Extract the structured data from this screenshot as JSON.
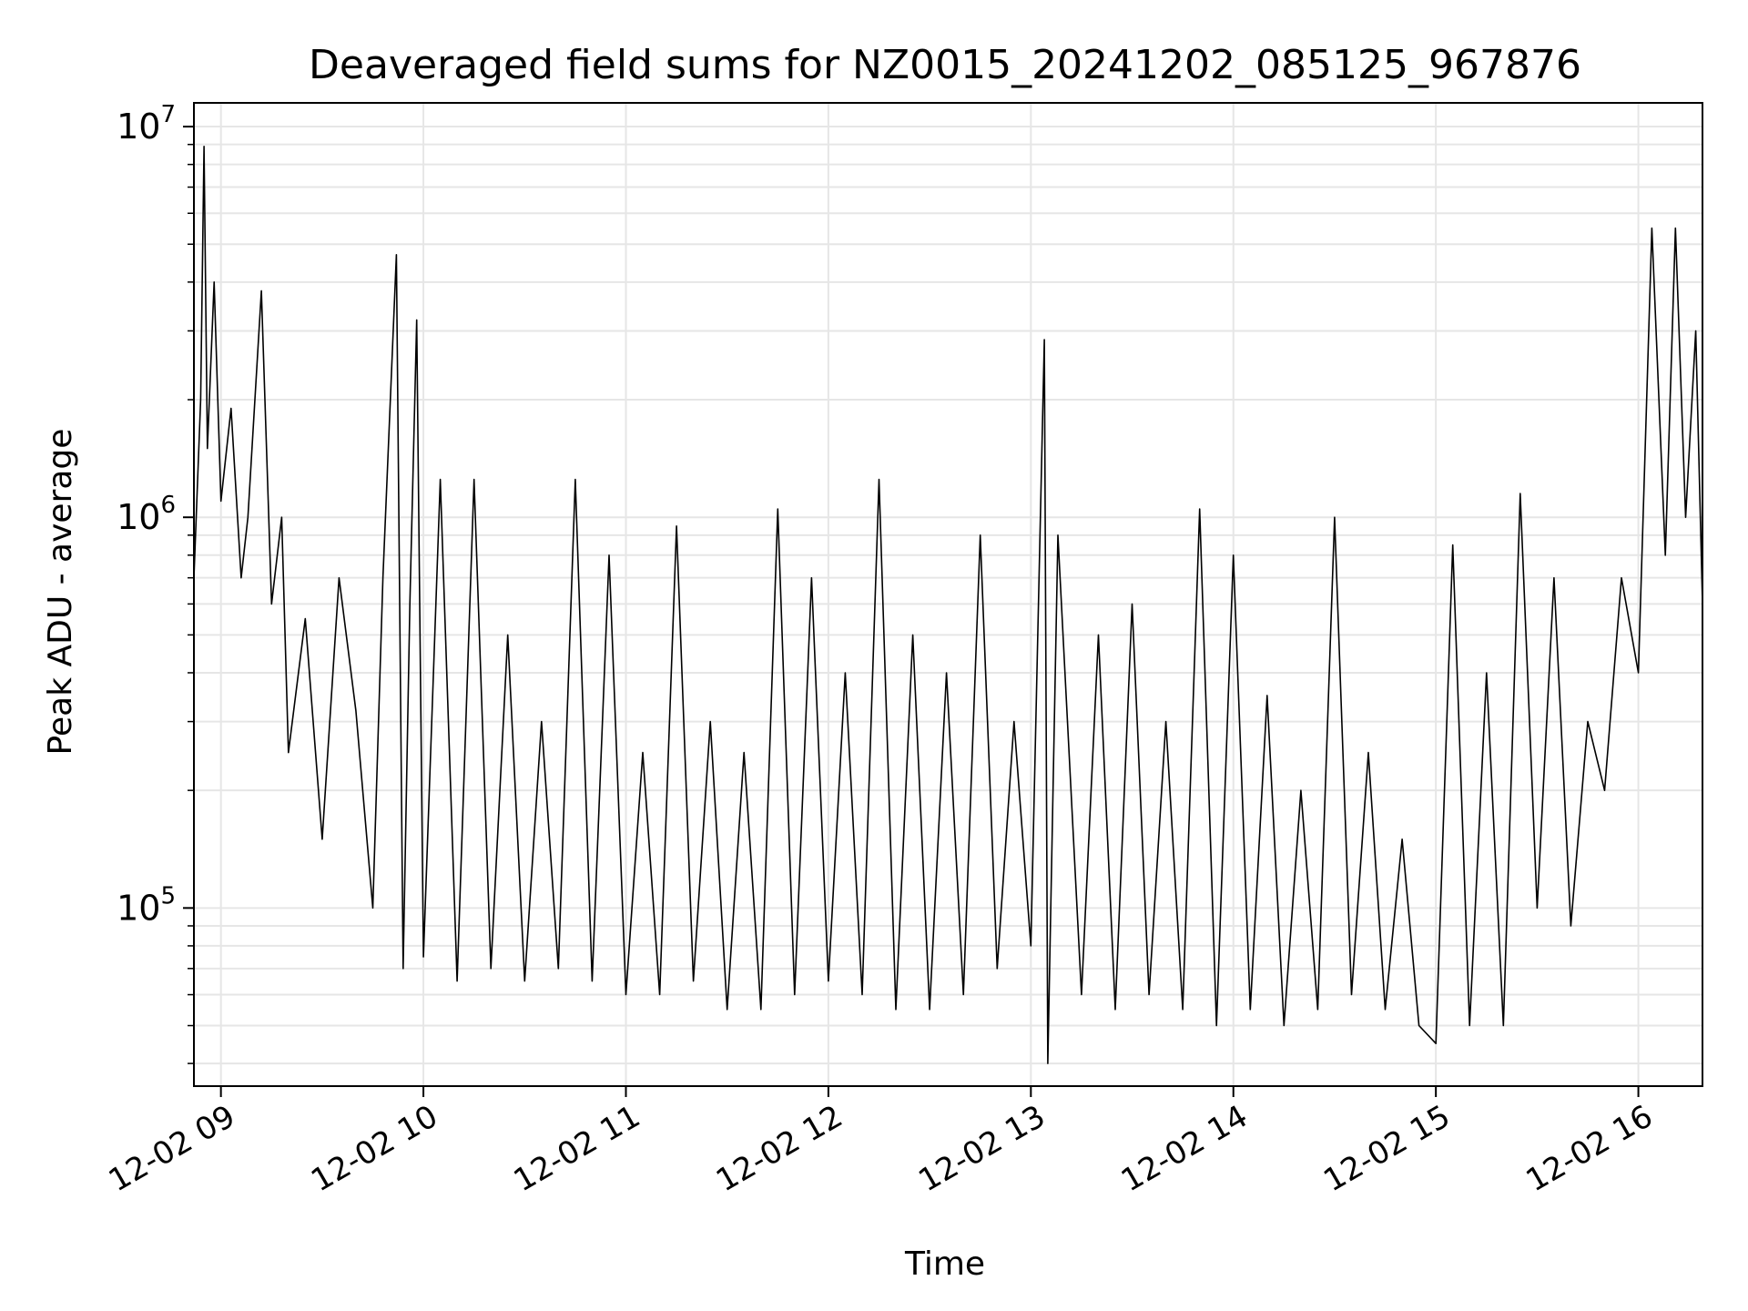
{
  "chart_data": {
    "type": "line",
    "title": "Deaveraged field sums for NZ0015_20241202_085125_967876",
    "xlabel": "Time",
    "ylabel": "Peak ADU - average",
    "yscale": "log",
    "ylim": [
      35000,
      11500000
    ],
    "xlim": [
      "2024-12-02 08:52",
      "2024-12-02 16:19"
    ],
    "grid": true,
    "line_color": "#000000",
    "grid_color": "#e6e6e6",
    "x_ticks": [
      {
        "t": "2024-12-02 09:00",
        "label": "12-02 09"
      },
      {
        "t": "2024-12-02 10:00",
        "label": "12-02 10"
      },
      {
        "t": "2024-12-02 11:00",
        "label": "12-02 11"
      },
      {
        "t": "2024-12-02 12:00",
        "label": "12-02 12"
      },
      {
        "t": "2024-12-02 13:00",
        "label": "12-02 13"
      },
      {
        "t": "2024-12-02 14:00",
        "label": "12-02 14"
      },
      {
        "t": "2024-12-02 15:00",
        "label": "12-02 15"
      },
      {
        "t": "2024-12-02 16:00",
        "label": "12-02 16"
      }
    ],
    "y_ticks": [
      {
        "value": 100000,
        "base": "10",
        "exp": "5"
      },
      {
        "value": 1000000,
        "base": "10",
        "exp": "6"
      },
      {
        "value": 10000000,
        "base": "10",
        "exp": "7"
      }
    ],
    "series": [
      {
        "points": [
          [
            "2024-12-02 08:52",
            700000
          ],
          [
            "2024-12-02 08:54",
            2000000
          ],
          [
            "2024-12-02 08:55",
            8900000
          ],
          [
            "2024-12-02 08:56",
            1500000
          ],
          [
            "2024-12-02 08:58",
            4000000
          ],
          [
            "2024-12-02 09:00",
            1100000
          ],
          [
            "2024-12-02 09:03",
            1900000
          ],
          [
            "2024-12-02 09:06",
            700000
          ],
          [
            "2024-12-02 09:08",
            1000000
          ],
          [
            "2024-12-02 09:12",
            3800000
          ],
          [
            "2024-12-02 09:15",
            600000
          ],
          [
            "2024-12-02 09:18",
            1000000
          ],
          [
            "2024-12-02 09:20",
            250000
          ],
          [
            "2024-12-02 09:25",
            550000
          ],
          [
            "2024-12-02 09:30",
            150000
          ],
          [
            "2024-12-02 09:35",
            700000
          ],
          [
            "2024-12-02 09:40",
            320000
          ],
          [
            "2024-12-02 09:45",
            100000
          ],
          [
            "2024-12-02 09:48",
            700000
          ],
          [
            "2024-12-02 09:52",
            4700000
          ],
          [
            "2024-12-02 09:54",
            70000
          ],
          [
            "2024-12-02 09:56",
            600000
          ],
          [
            "2024-12-02 09:58",
            3200000
          ],
          [
            "2024-12-02 10:00",
            75000
          ],
          [
            "2024-12-02 10:05",
            1250000
          ],
          [
            "2024-12-02 10:10",
            65000
          ],
          [
            "2024-12-02 10:15",
            1250000
          ],
          [
            "2024-12-02 10:20",
            70000
          ],
          [
            "2024-12-02 10:25",
            500000
          ],
          [
            "2024-12-02 10:30",
            65000
          ],
          [
            "2024-12-02 10:35",
            300000
          ],
          [
            "2024-12-02 10:40",
            70000
          ],
          [
            "2024-12-02 10:45",
            1250000
          ],
          [
            "2024-12-02 10:50",
            65000
          ],
          [
            "2024-12-02 10:55",
            800000
          ],
          [
            "2024-12-02 11:00",
            60000
          ],
          [
            "2024-12-02 11:05",
            250000
          ],
          [
            "2024-12-02 11:10",
            60000
          ],
          [
            "2024-12-02 11:15",
            950000
          ],
          [
            "2024-12-02 11:20",
            65000
          ],
          [
            "2024-12-02 11:25",
            300000
          ],
          [
            "2024-12-02 11:30",
            55000
          ],
          [
            "2024-12-02 11:35",
            250000
          ],
          [
            "2024-12-02 11:40",
            55000
          ],
          [
            "2024-12-02 11:45",
            1050000
          ],
          [
            "2024-12-02 11:50",
            60000
          ],
          [
            "2024-12-02 11:55",
            700000
          ],
          [
            "2024-12-02 12:00",
            65000
          ],
          [
            "2024-12-02 12:05",
            400000
          ],
          [
            "2024-12-02 12:10",
            60000
          ],
          [
            "2024-12-02 12:15",
            1250000
          ],
          [
            "2024-12-02 12:20",
            55000
          ],
          [
            "2024-12-02 12:25",
            500000
          ],
          [
            "2024-12-02 12:30",
            55000
          ],
          [
            "2024-12-02 12:35",
            400000
          ],
          [
            "2024-12-02 12:40",
            60000
          ],
          [
            "2024-12-02 12:45",
            900000
          ],
          [
            "2024-12-02 12:50",
            70000
          ],
          [
            "2024-12-02 12:55",
            300000
          ],
          [
            "2024-12-02 13:00",
            80000
          ],
          [
            "2024-12-02 13:04",
            2850000
          ],
          [
            "2024-12-02 13:05",
            40000
          ],
          [
            "2024-12-02 13:08",
            900000
          ],
          [
            "2024-12-02 13:15",
            60000
          ],
          [
            "2024-12-02 13:20",
            500000
          ],
          [
            "2024-12-02 13:25",
            55000
          ],
          [
            "2024-12-02 13:30",
            600000
          ],
          [
            "2024-12-02 13:35",
            60000
          ],
          [
            "2024-12-02 13:40",
            300000
          ],
          [
            "2024-12-02 13:45",
            55000
          ],
          [
            "2024-12-02 13:50",
            1050000
          ],
          [
            "2024-12-02 13:55",
            50000
          ],
          [
            "2024-12-02 14:00",
            800000
          ],
          [
            "2024-12-02 14:05",
            55000
          ],
          [
            "2024-12-02 14:10",
            350000
          ],
          [
            "2024-12-02 14:15",
            50000
          ],
          [
            "2024-12-02 14:20",
            200000
          ],
          [
            "2024-12-02 14:25",
            55000
          ],
          [
            "2024-12-02 14:30",
            1000000
          ],
          [
            "2024-12-02 14:35",
            60000
          ],
          [
            "2024-12-02 14:40",
            250000
          ],
          [
            "2024-12-02 14:45",
            55000
          ],
          [
            "2024-12-02 14:50",
            150000
          ],
          [
            "2024-12-02 14:55",
            50000
          ],
          [
            "2024-12-02 15:00",
            45000
          ],
          [
            "2024-12-02 15:05",
            850000
          ],
          [
            "2024-12-02 15:10",
            50000
          ],
          [
            "2024-12-02 15:15",
            400000
          ],
          [
            "2024-12-02 15:20",
            50000
          ],
          [
            "2024-12-02 15:25",
            1150000
          ],
          [
            "2024-12-02 15:30",
            100000
          ],
          [
            "2024-12-02 15:35",
            700000
          ],
          [
            "2024-12-02 15:40",
            90000
          ],
          [
            "2024-12-02 15:45",
            300000
          ],
          [
            "2024-12-02 15:50",
            200000
          ],
          [
            "2024-12-02 15:55",
            700000
          ],
          [
            "2024-12-02 16:00",
            400000
          ],
          [
            "2024-12-02 16:04",
            5500000
          ],
          [
            "2024-12-02 16:08",
            800000
          ],
          [
            "2024-12-02 16:11",
            5500000
          ],
          [
            "2024-12-02 16:14",
            1000000
          ],
          [
            "2024-12-02 16:17",
            3000000
          ],
          [
            "2024-12-02 16:19",
            600000
          ]
        ]
      }
    ]
  }
}
